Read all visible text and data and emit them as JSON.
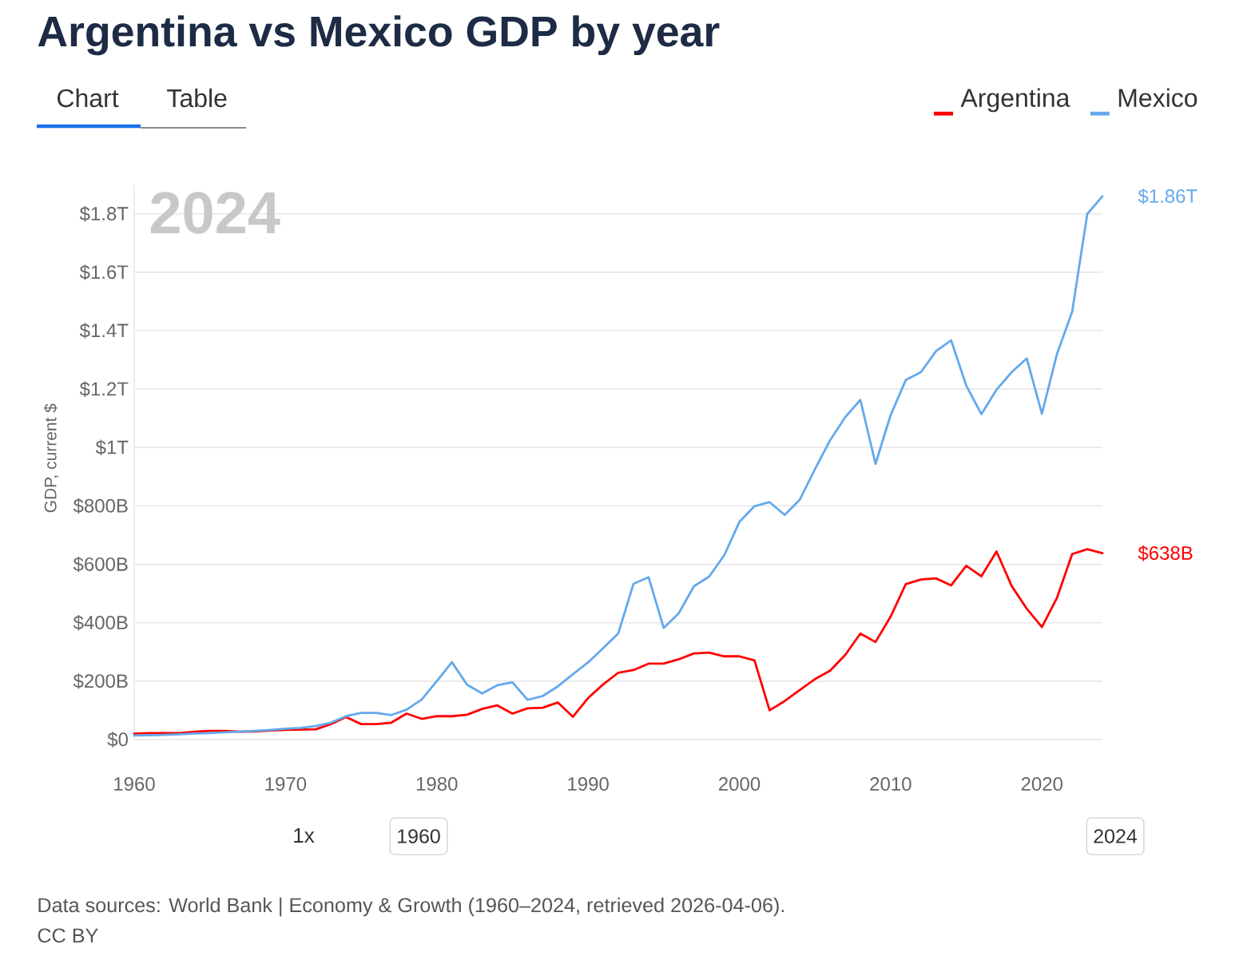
{
  "chart_data": {
    "type": "line",
    "title": "Argentina vs Mexico GDP by year",
    "ylabel": "GDP, current $",
    "x": [
      1960,
      1961,
      1962,
      1963,
      1964,
      1965,
      1966,
      1967,
      1968,
      1969,
      1970,
      1971,
      1972,
      1973,
      1974,
      1975,
      1976,
      1977,
      1978,
      1979,
      1980,
      1981,
      1982,
      1983,
      1984,
      1985,
      1986,
      1987,
      1988,
      1989,
      1990,
      1991,
      1992,
      1993,
      1994,
      1995,
      1996,
      1997,
      1998,
      1999,
      2000,
      2001,
      2002,
      2003,
      2004,
      2005,
      2006,
      2007,
      2008,
      2009,
      2010,
      2011,
      2012,
      2013,
      2014,
      2015,
      2016,
      2017,
      2018,
      2019,
      2020,
      2021,
      2022,
      2023,
      2024
    ],
    "series": [
      {
        "name": "Argentina",
        "color": "#ff0000",
        "values": [
          20000000000.0,
          22000000000.0,
          22000000000.0,
          22000000000.0,
          27000000000.0,
          30000000000.0,
          30000000000.0,
          27000000000.0,
          28000000000.0,
          31000000000.0,
          33000000000.0,
          34000000000.0,
          35000000000.0,
          53000000000.0,
          77000000000.0,
          53000000000.0,
          53000000000.0,
          58000000000.0,
          89000000000.0,
          71000000000.0,
          80000000000.0,
          80000000000.0,
          85000000000.0,
          105000000000.0,
          117000000000.0,
          89000000000.0,
          107000000000.0,
          109000000000.0,
          127000000000.0,
          78000000000.0,
          142000000000.0,
          189000000000.0,
          229000000000.0,
          238000000000.0,
          260000000000.0,
          260000000000.0,
          275000000000.0,
          295000000000.0,
          298000000000.0,
          285000000000.0,
          285000000000.0,
          271000000000.0,
          100000000000.0,
          132000000000.0,
          170000000000.0,
          207000000000.0,
          236000000000.0,
          290000000000.0,
          363000000000.0,
          334000000000.0,
          421000000000.0,
          532000000000.0,
          548000000000.0,
          552000000000.0,
          528000000000.0,
          595000000000.0,
          559000000000.0,
          644000000000.0,
          526000000000.0,
          448000000000.0,
          385000000000.0,
          486000000000.0,
          635000000000.0,
          652000000000.0,
          638000000000.0
        ]
      },
      {
        "name": "Mexico",
        "color": "#64a9ec",
        "values": [
          14000000000.0,
          15000000000.0,
          16000000000.0,
          18000000000.0,
          21000000000.0,
          22000000000.0,
          25000000000.0,
          27000000000.0,
          30000000000.0,
          33000000000.0,
          37000000000.0,
          40000000000.0,
          46000000000.0,
          58000000000.0,
          80000000000.0,
          91000000000.0,
          91000000000.0,
          84000000000.0,
          102000000000.0,
          137000000000.0,
          200000000000.0,
          265000000000.0,
          188000000000.0,
          158000000000.0,
          186000000000.0,
          196000000000.0,
          136000000000.0,
          149000000000.0,
          182000000000.0,
          224000000000.0,
          264000000000.0,
          313000000000.0,
          364000000000.0,
          533000000000.0,
          556000000000.0,
          382000000000.0,
          433000000000.0,
          525000000000.0,
          558000000000.0,
          631000000000.0,
          745000000000.0,
          799000000000.0,
          813000000000.0,
          769000000000.0,
          822000000000.0,
          926000000000.0,
          1025000000000.0,
          1104000000000.0,
          1163000000000.0,
          944000000000.0,
          1111000000000.0,
          1231000000000.0,
          1258000000000.0,
          1330000000000.0,
          1367000000000.0,
          1212000000000.0,
          1114000000000.0,
          1198000000000.0,
          1258000000000.0,
          1305000000000.0,
          1116000000000.0,
          1321000000000.0,
          1465000000000.0,
          1800000000000.0,
          1860000000000.0
        ]
      }
    ],
    "xlim": [
      1960,
      2024
    ],
    "ylim": [
      0,
      1900000000000.0
    ],
    "xticks": [
      1960,
      1970,
      1980,
      1990,
      2000,
      2010,
      2020
    ],
    "yticks": [
      {
        "value": 0,
        "label": "$0"
      },
      {
        "value": 200000000000.0,
        "label": "$200B"
      },
      {
        "value": 400000000000.0,
        "label": "$400B"
      },
      {
        "value": 600000000000.0,
        "label": "$600B"
      },
      {
        "value": 800000000000.0,
        "label": "$800B"
      },
      {
        "value": 1000000000000.0,
        "label": "$1T"
      },
      {
        "value": 1200000000000.0,
        "label": "$1.2T"
      },
      {
        "value": 1400000000000.0,
        "label": "$1.4T"
      },
      {
        "value": 1600000000000.0,
        "label": "$1.6T"
      },
      {
        "value": 1800000000000.0,
        "label": "$1.8T"
      }
    ],
    "grid": "y",
    "legend": "top right",
    "line_style": "solid",
    "annotations": [
      "2024",
      "Chart",
      "Table",
      "1x",
      "1960",
      "2024",
      "Data sources: World Bank | Economy & Growth (1960–2024, retrieved 2026-04-06).",
      "CC BY",
      {
        "text": "$1.86T",
        "x": 2024,
        "y": 1860000000000.0
      },
      {
        "text": "$638B",
        "x": 2024,
        "y": 638000000000.0
      }
    ]
  }
}
